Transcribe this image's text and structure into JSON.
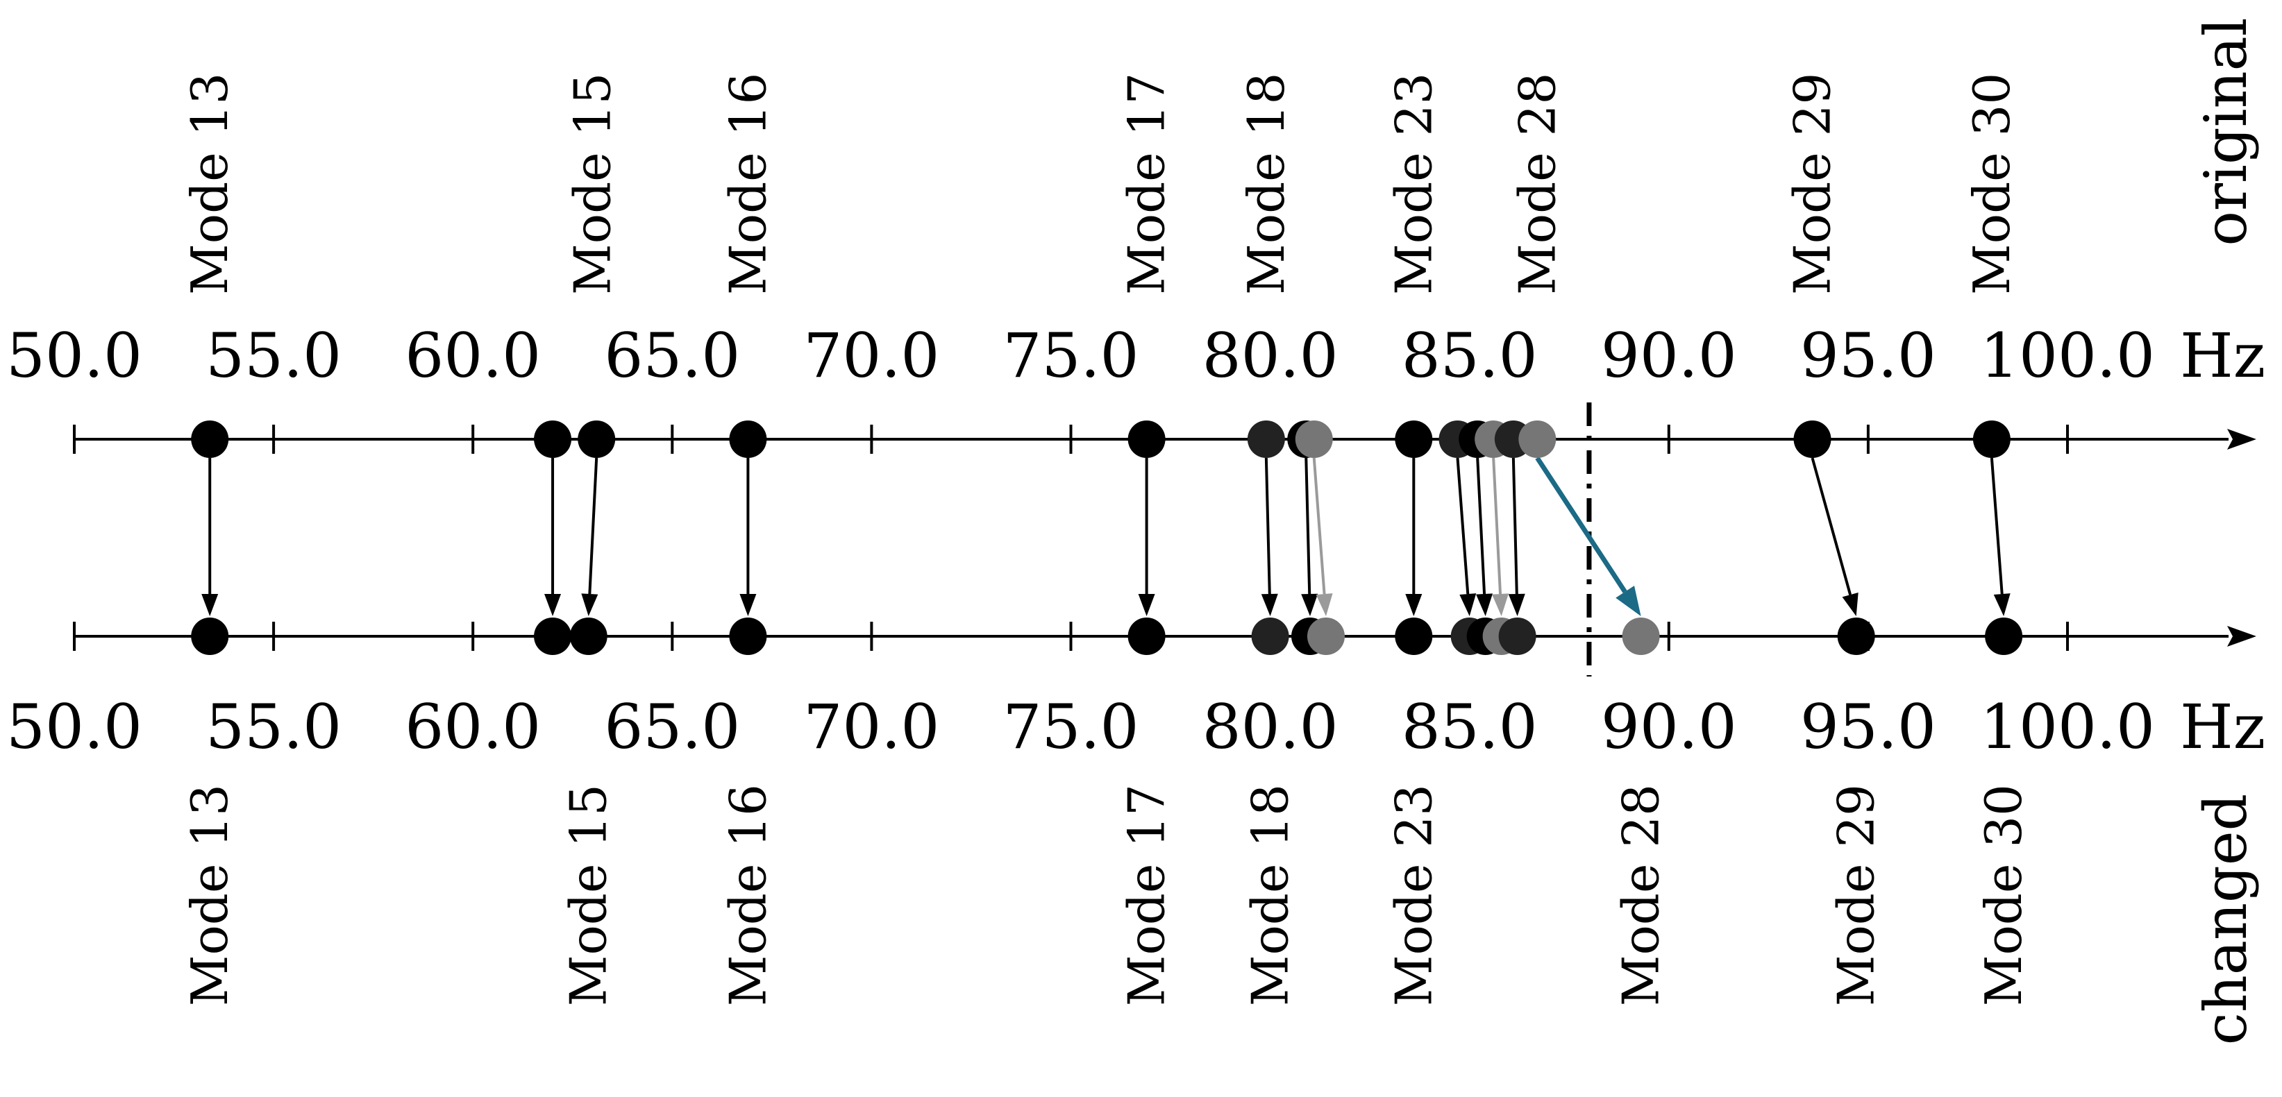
{
  "unit": "Hz",
  "axes": {
    "top": {
      "title": "original"
    },
    "bottom": {
      "title": "changed"
    }
  },
  "ticks": [
    "50.0",
    "55.0",
    "60.0",
    "65.0",
    "70.0",
    "75.0",
    "80.0",
    "85.0",
    "90.0",
    "95.0",
    "100.0"
  ],
  "axis_range_hz": [
    50,
    106
  ],
  "threshold_hz": 88.0,
  "colors": {
    "black": "#000000",
    "dark": "#222222",
    "gray": "#767676",
    "light_gray": "#9a9a9a",
    "highlight": "#1b6a86"
  },
  "labels": {
    "original": [
      "Mode 13",
      "Mode 15",
      "Mode 16",
      "Mode 17",
      "Mode 18",
      "Mode 23",
      "Mode 28",
      "Mode 29",
      "Mode 30"
    ],
    "changed": [
      "Mode 13",
      "Mode 15",
      "Mode 16",
      "Mode 17",
      "Mode 18",
      "Mode 23",
      "Mode 28",
      "Mode 29",
      "Mode 30"
    ]
  },
  "label_freqs": {
    "original": [
      53.4,
      63.0,
      66.9,
      76.9,
      79.9,
      83.6,
      86.7,
      93.6,
      98.1
    ],
    "changed": [
      53.4,
      62.9,
      66.9,
      76.9,
      80.0,
      83.6,
      89.3,
      94.7,
      98.4
    ]
  },
  "label_colors": {
    "original": [
      "black",
      "black",
      "black",
      "black",
      "black",
      "black",
      "gray",
      "black",
      "black"
    ],
    "changed": [
      "black",
      "black",
      "black",
      "black",
      "black",
      "black",
      "gray",
      "black",
      "black"
    ]
  },
  "modes": [
    {
      "original": 53.4,
      "changed": 53.4,
      "color": "black"
    },
    {
      "original": 62.0,
      "changed": 62.0,
      "color": "black"
    },
    {
      "original": 63.1,
      "changed": 62.9,
      "color": "black"
    },
    {
      "original": 66.9,
      "changed": 66.9,
      "color": "black"
    },
    {
      "original": 76.9,
      "changed": 76.9,
      "color": "black"
    },
    {
      "original": 79.9,
      "changed": 80.0,
      "color": "dark"
    },
    {
      "original": 80.9,
      "changed": 81.0,
      "color": "black"
    },
    {
      "original": 81.1,
      "changed": 81.4,
      "color": "gray"
    },
    {
      "original": 83.6,
      "changed": 83.6,
      "color": "black"
    },
    {
      "original": 84.7,
      "changed": 85.0,
      "color": "dark"
    },
    {
      "original": 85.2,
      "changed": 85.4,
      "color": "black"
    },
    {
      "original": 85.6,
      "changed": 85.8,
      "color": "gray"
    },
    {
      "original": 86.1,
      "changed": 86.2,
      "color": "dark"
    },
    {
      "original": 86.7,
      "changed": 89.3,
      "color": "gray",
      "highlight": true
    },
    {
      "original": 93.6,
      "changed": 94.7,
      "color": "black"
    },
    {
      "original": 98.1,
      "changed": 98.4,
      "color": "black"
    }
  ]
}
